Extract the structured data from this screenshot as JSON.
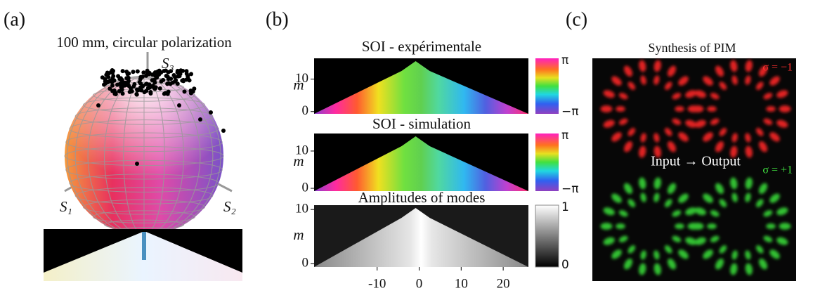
{
  "panels": [
    {
      "label": "(a)",
      "title": "100 mm, circular polarization",
      "axis_labels": [
        "S₃",
        "S₁",
        "S₂"
      ]
    },
    {
      "label": "(b)",
      "xlim": [
        -25,
        26
      ],
      "xticks": [
        -10,
        0,
        10,
        20
      ],
      "plots": [
        {
          "title": "SOI - expérimentale",
          "ylabel": "m",
          "ylim": [
            -0.7,
            16.4
          ],
          "yticks": [
            0,
            10
          ],
          "colorbar": [
            "π",
            "−π"
          ]
        },
        {
          "title": "SOI - simulation",
          "ylabel": "m",
          "ylim": [
            -0.75,
            14.7
          ],
          "yticks": [
            0,
            10
          ],
          "colorbar": [
            "π",
            "−π"
          ]
        },
        {
          "title": "Amplitudes of modes",
          "ylabel": "m",
          "ylim": [
            -0.6,
            10.8
          ],
          "yticks": [
            0,
            10
          ],
          "colorbar": [
            "1",
            "0"
          ]
        }
      ]
    },
    {
      "label": "(c)",
      "title": "Synthesis of PIM",
      "annotations": [
        "σ = −1",
        "Input → Output",
        "σ = +1"
      ]
    }
  ]
}
